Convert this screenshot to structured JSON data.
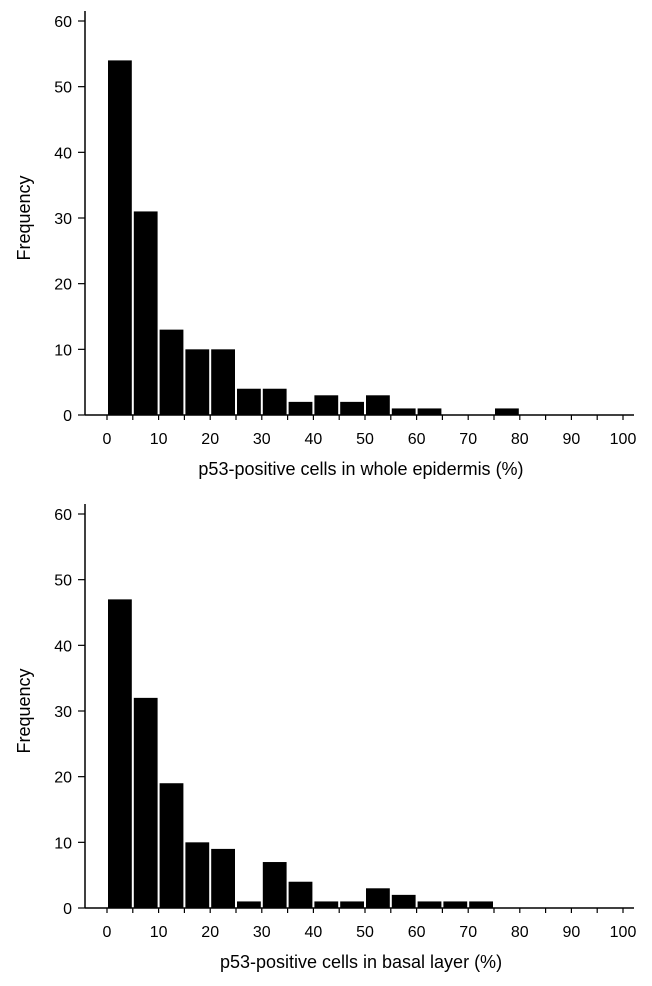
{
  "chart_data": [
    {
      "type": "bar",
      "xlabel": "p53-positive cells in whole epidermis (%)",
      "ylabel": "Frequency",
      "bins": [
        [
          0,
          5
        ],
        [
          5,
          10
        ],
        [
          10,
          15
        ],
        [
          15,
          20
        ],
        [
          20,
          25
        ],
        [
          25,
          30
        ],
        [
          30,
          35
        ],
        [
          35,
          40
        ],
        [
          40,
          45
        ],
        [
          45,
          50
        ],
        [
          50,
          55
        ],
        [
          55,
          60
        ],
        [
          60,
          65
        ],
        [
          65,
          70
        ],
        [
          70,
          75
        ],
        [
          75,
          80
        ],
        [
          80,
          85
        ],
        [
          85,
          90
        ],
        [
          90,
          95
        ],
        [
          95,
          100
        ]
      ],
      "values": [
        54,
        31,
        13,
        10,
        10,
        4,
        4,
        2,
        3,
        2,
        3,
        1,
        1,
        0,
        0,
        1,
        0,
        0,
        0,
        0
      ],
      "xlim": [
        0,
        100
      ],
      "ylim": [
        0,
        60
      ],
      "xticks": [
        "0",
        "10",
        "20",
        "30",
        "40",
        "50",
        "60",
        "70",
        "80",
        "90",
        "100"
      ],
      "yticks": [
        "0",
        "10",
        "20",
        "30",
        "40",
        "50",
        "60"
      ],
      "bar_color": "#000000",
      "grid": false
    },
    {
      "type": "bar",
      "xlabel": "p53-positive cells in basal layer (%)",
      "ylabel": "Frequency",
      "bins": [
        [
          0,
          5
        ],
        [
          5,
          10
        ],
        [
          10,
          15
        ],
        [
          15,
          20
        ],
        [
          20,
          25
        ],
        [
          25,
          30
        ],
        [
          30,
          35
        ],
        [
          35,
          40
        ],
        [
          40,
          45
        ],
        [
          45,
          50
        ],
        [
          50,
          55
        ],
        [
          55,
          60
        ],
        [
          60,
          65
        ],
        [
          65,
          70
        ],
        [
          70,
          75
        ],
        [
          75,
          80
        ],
        [
          80,
          85
        ],
        [
          85,
          90
        ],
        [
          90,
          95
        ],
        [
          95,
          100
        ]
      ],
      "values": [
        47,
        32,
        19,
        10,
        9,
        1,
        7,
        4,
        1,
        1,
        3,
        2,
        1,
        1,
        1,
        0,
        0,
        0,
        0,
        0
      ],
      "xlim": [
        0,
        100
      ],
      "ylim": [
        0,
        60
      ],
      "xticks": [
        "0",
        "10",
        "20",
        "30",
        "40",
        "50",
        "60",
        "70",
        "80",
        "90",
        "100"
      ],
      "yticks": [
        "0",
        "10",
        "20",
        "30",
        "40",
        "50",
        "60"
      ],
      "bar_color": "#000000",
      "grid": false
    }
  ]
}
